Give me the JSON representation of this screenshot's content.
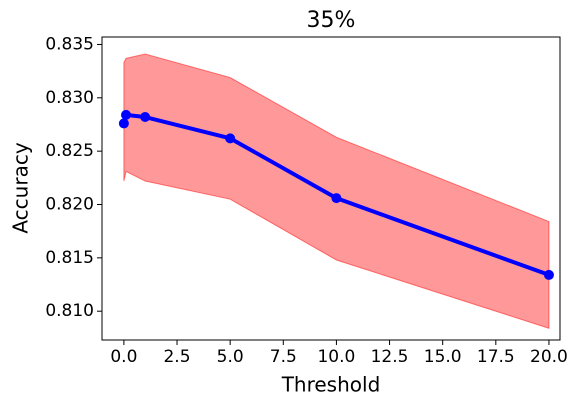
{
  "chart_data": {
    "type": "line",
    "title": "35%",
    "xlabel": "Threshold",
    "ylabel": "Accuracy",
    "x": [
      0,
      0.1,
      1,
      5,
      10,
      20
    ],
    "series": [
      {
        "color": "#0000ff",
        "values": [
          0.8276,
          0.8284,
          0.8282,
          0.8262,
          0.8206,
          0.8134
        ]
      }
    ],
    "band": {
      "color": "#ff0000",
      "lower": [
        0.8222,
        0.8231,
        0.8222,
        0.8205,
        0.8148,
        0.8084
      ],
      "upper": [
        0.8333,
        0.8337,
        0.8341,
        0.8319,
        0.8263,
        0.8184
      ]
    },
    "xlim": [
      -1.03,
      20.52
    ],
    "xticks": [
      {
        "value": 0,
        "label": "0.0"
      },
      {
        "value": 2.5,
        "label": "2.5"
      },
      {
        "value": 5,
        "label": "5.0"
      },
      {
        "value": 7.5,
        "label": "7.5"
      },
      {
        "value": 10,
        "label": "10.0"
      },
      {
        "value": 12.5,
        "label": "12.5"
      },
      {
        "value": 15,
        "label": "15.0"
      },
      {
        "value": 17.5,
        "label": "17.5"
      },
      {
        "value": 20,
        "label": "20.0"
      }
    ],
    "ylim": [
      0.8073,
      0.8357
    ],
    "yticks": [
      {
        "value": 0.81,
        "label": "0.810"
      },
      {
        "value": 0.815,
        "label": "0.815"
      },
      {
        "value": 0.82,
        "label": "0.820"
      },
      {
        "value": 0.825,
        "label": "0.825"
      },
      {
        "value": 0.83,
        "label": "0.830"
      },
      {
        "value": 0.835,
        "label": "0.835"
      }
    ],
    "grid": false
  }
}
